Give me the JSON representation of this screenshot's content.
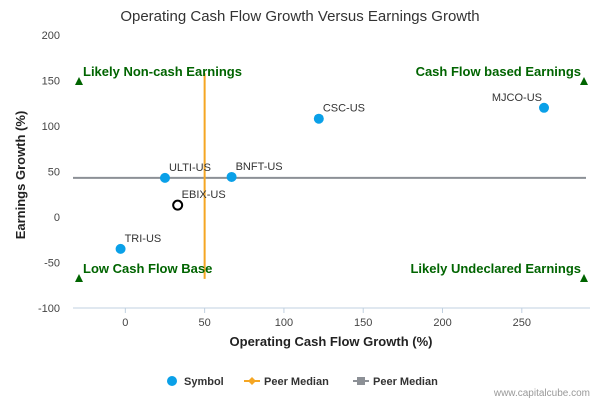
{
  "chart_data": {
    "type": "scatter",
    "title": "Operating Cash Flow Growth Versus Earnings Growth",
    "xlabel": "Operating Cash Flow Growth (%)",
    "ylabel": "Earnings Growth (%)",
    "xlim": [
      -33,
      293
    ],
    "ylim": [
      -100,
      200
    ],
    "x_ticks": [
      0,
      50,
      100,
      150,
      200,
      250
    ],
    "y_ticks": [
      -100,
      -50,
      0,
      50,
      100,
      150,
      200
    ],
    "x_tick_labels": [
      "0",
      "50",
      "100",
      "150",
      "200",
      "250"
    ],
    "y_tick_labels": [
      "-100",
      "-50",
      "0",
      "50",
      "100",
      "150",
      "200"
    ],
    "grid": false,
    "points": [
      {
        "label": "MJCO-US",
        "x": 264,
        "y": 120,
        "color": "#0aa0e8"
      },
      {
        "label": "CSC-US",
        "x": 122,
        "y": 108,
        "color": "#0aa0e8"
      },
      {
        "label": "BNFT-US",
        "x": 67,
        "y": 44,
        "color": "#0aa0e8"
      },
      {
        "label": "ULTI-US",
        "x": 25,
        "y": 43,
        "color": "#0aa0e8"
      },
      {
        "label": "TRI-US",
        "x": -3,
        "y": -35,
        "color": "#0aa0e8"
      },
      {
        "label": "EBIX-US",
        "x": 33,
        "y": 13,
        "color": "#ffffff",
        "outline": "#000000"
      }
    ],
    "peer_median_x": 50,
    "peer_median_x_range": [
      -68,
      158
    ],
    "peer_median_y": 43,
    "quadrant_labels": {
      "top_left": "Likely Non-cash Earnings",
      "top_right": "Cash Flow based Earnings",
      "bottom_left": "Low Cash Flow Base",
      "bottom_right": "Likely Undeclared Earnings"
    },
    "legend": [
      {
        "label": "Symbol",
        "color": "#0aa0e8",
        "shape": "circle"
      },
      {
        "label": "Peer Median",
        "color": "#f5a623",
        "shape": "diamond-line"
      },
      {
        "label": "Peer Median",
        "color": "#8c9096",
        "shape": "square-line"
      }
    ],
    "legend_position": "bottom",
    "colors": {
      "quadrant_text": "#006400",
      "peer_median_vertical": "#f5a623",
      "peer_median_horizontal": "#8c9096",
      "axis": "#c0d0e0"
    }
  },
  "credit": "www.capitalcube.com"
}
